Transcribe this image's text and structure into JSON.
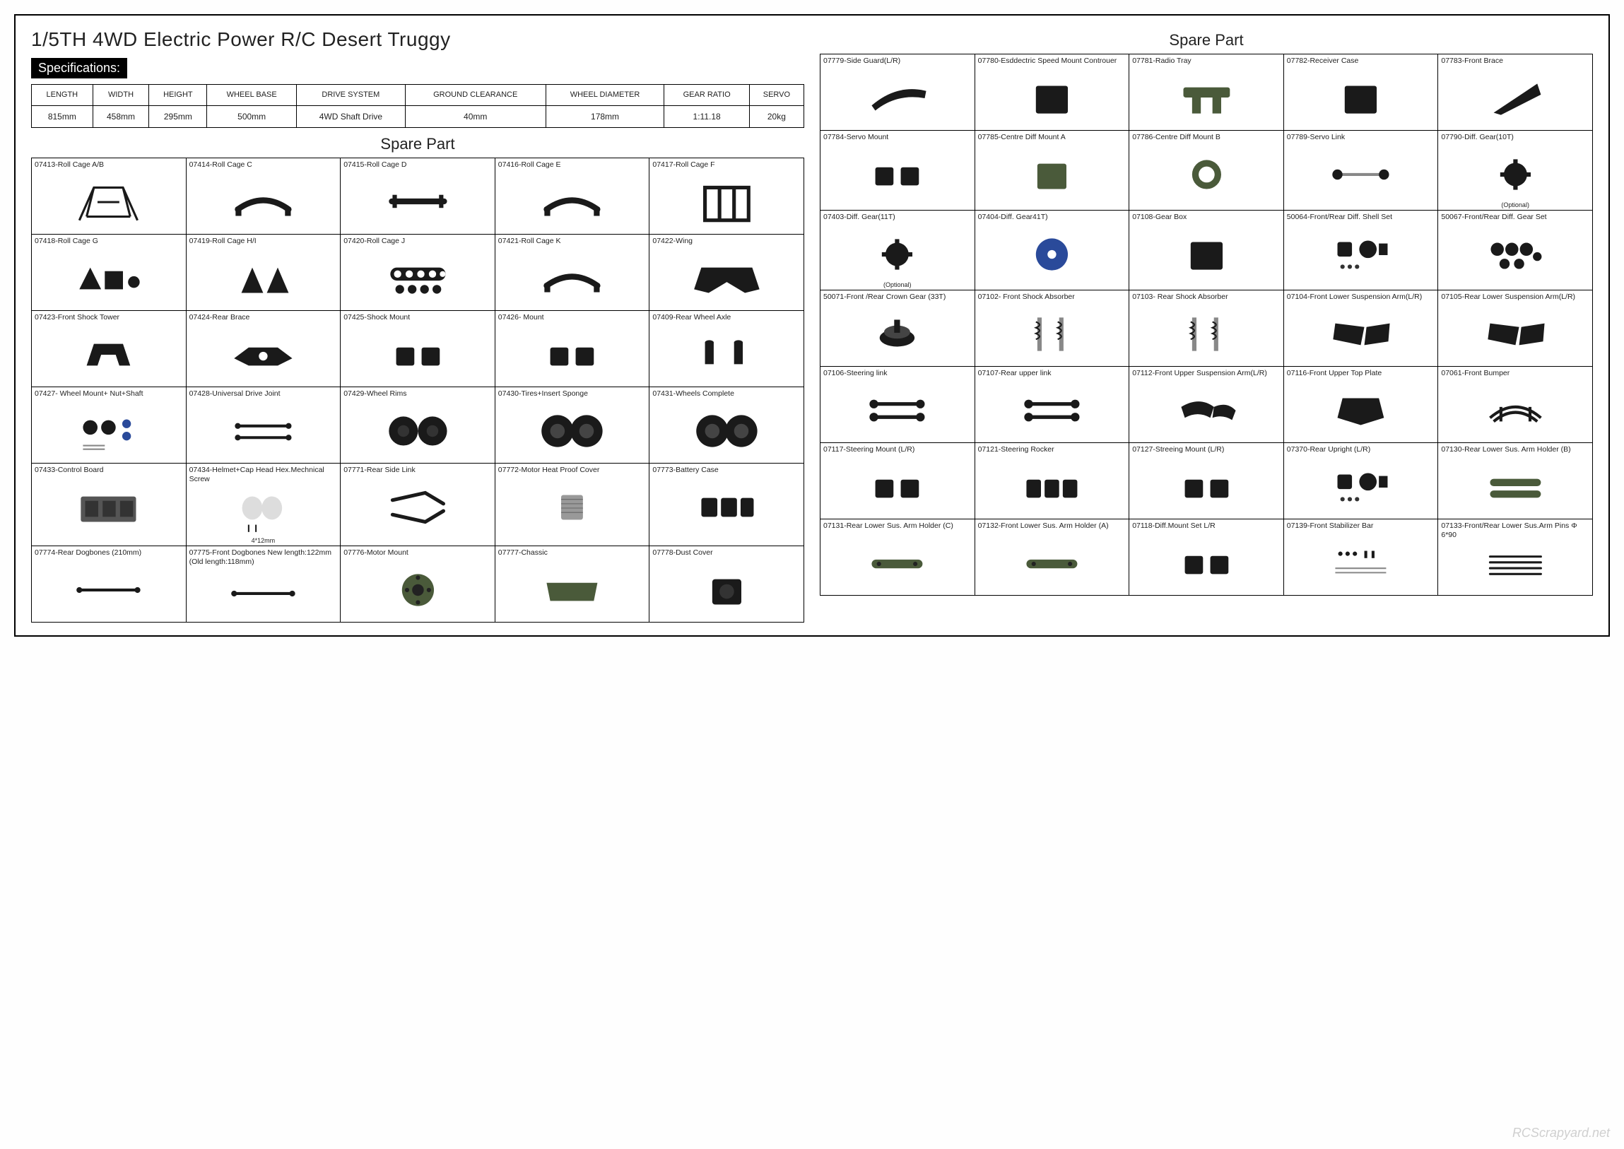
{
  "title": "1/5TH 4WD Electric Power R/C Desert Truggy",
  "spec_label": "Specifications:",
  "spec_headers": [
    "LENGTH",
    "WIDTH",
    "HEIGHT",
    "WHEEL BASE",
    "DRIVE SYSTEM",
    "GROUND CLEARANCE",
    "WHEEL DIAMETER",
    "GEAR RATIO",
    "SERVO"
  ],
  "spec_values": [
    "815mm",
    "458mm",
    "295mm",
    "500mm",
    "4WD Shaft Drive",
    "40mm",
    "178mm",
    "1:11.18",
    "20kg"
  ],
  "section_title": "Spare Part",
  "watermark": "RCScrapyard.net",
  "left_parts": [
    [
      {
        "label": "07413-Roll Cage A/B",
        "shape": "cage"
      },
      {
        "label": "07414-Roll Cage C",
        "shape": "bar"
      },
      {
        "label": "07415-Roll Cage D",
        "shape": "bar2"
      },
      {
        "label": "07416-Roll Cage E",
        "shape": "bar"
      },
      {
        "label": "07417-Roll Cage F",
        "shape": "frame"
      }
    ],
    [
      {
        "label": "07418-Roll Cage G",
        "shape": "mixed"
      },
      {
        "label": "07419-Roll Cage H/I",
        "shape": "tri"
      },
      {
        "label": "07420-Roll Cage J",
        "shape": "holes"
      },
      {
        "label": "07421-Roll Cage K",
        "shape": "bar"
      },
      {
        "label": "07422-Wing",
        "shape": "wing"
      }
    ],
    [
      {
        "label": "07423-Front Shock Tower",
        "shape": "tower"
      },
      {
        "label": "07424-Rear Brace",
        "shape": "brace"
      },
      {
        "label": "07425-Shock Mount",
        "shape": "block2"
      },
      {
        "label": "07426- Mount",
        "shape": "block2"
      },
      {
        "label": "07409-Rear Wheel Axle",
        "shape": "axle"
      }
    ],
    [
      {
        "label": "07427- Wheel Mount+ Nut+Shaft",
        "shape": "kit"
      },
      {
        "label": "07428-Universal Drive Joint",
        "shape": "rod2"
      },
      {
        "label": "07429-Wheel Rims",
        "shape": "rims"
      },
      {
        "label": "07430-Tires+Insert Sponge",
        "shape": "tires"
      },
      {
        "label": "07431-Wheels Complete",
        "shape": "tires"
      }
    ],
    [
      {
        "label": "07433-Control Board",
        "shape": "board"
      },
      {
        "label": "07434-Helmet+Cap Head Hex.Mechnical Screw",
        "shape": "helmet",
        "note": "4*12mm"
      },
      {
        "label": "07771-Rear Side Link",
        "shape": "links"
      },
      {
        "label": "07772-Motor Heat Proof Cover",
        "shape": "cyl"
      },
      {
        "label": "07773-Battery Case",
        "shape": "boxes"
      }
    ],
    [
      {
        "label": "07774-Rear Dogbones (210mm)",
        "shape": "rod"
      },
      {
        "label": "07775-Front Dogbones New length:122mm (Old length:118mm)",
        "shape": "rod"
      },
      {
        "label": "07776-Motor Mount",
        "shape": "disc"
      },
      {
        "label": "07777-Chassic",
        "shape": "plate"
      },
      {
        "label": "07778-Dust Cover",
        "shape": "block"
      }
    ]
  ],
  "right_parts": [
    [
      {
        "label": "07779-Side Guard(L/R)",
        "shape": "curve"
      },
      {
        "label": "07780-Esddectric Speed Mount Controuer",
        "shape": "box"
      },
      {
        "label": "07781-Radio Tray",
        "shape": "plateG"
      },
      {
        "label": "07782-Receiver Case",
        "shape": "box"
      },
      {
        "label": "07783-Front Brace",
        "shape": "wedge"
      }
    ],
    [
      {
        "label": "07784-Servo Mount",
        "shape": "block2"
      },
      {
        "label": "07785-Centre Diff Mount A",
        "shape": "blockG"
      },
      {
        "label": "07786-Centre Diff Mount B",
        "shape": "ringG"
      },
      {
        "label": "07789-Servo Link",
        "shape": "link"
      },
      {
        "label": "07790-Diff. Gear(10T)",
        "shape": "gear",
        "note": "(Optional)"
      }
    ],
    [
      {
        "label": "07403-Diff. Gear(11T)",
        "shape": "gear",
        "note": "(Optional)"
      },
      {
        "label": "07404-Diff. Gear41T)",
        "shape": "gearB"
      },
      {
        "label": "07108-Gear Box",
        "shape": "box"
      },
      {
        "label": "50064-Front/Rear Diff. Shell Set",
        "shape": "kit2"
      },
      {
        "label": "50067-Front/Rear Diff. Gear Set",
        "shape": "gears"
      }
    ],
    [
      {
        "label": "50071-Front /Rear Crown Gear (33T)",
        "shape": "bevel"
      },
      {
        "label": "07102- Front Shock Absorber",
        "shape": "shocks"
      },
      {
        "label": "07103- Rear Shock Absorber",
        "shape": "shocks"
      },
      {
        "label": "07104-Front Lower Suspension Arm(L/R)",
        "shape": "arm"
      },
      {
        "label": "07105-Rear Lower Suspension Arm(L/R)",
        "shape": "arm"
      }
    ],
    [
      {
        "label": "07106-Steering link",
        "shape": "link2"
      },
      {
        "label": "07107-Rear upper link",
        "shape": "link2"
      },
      {
        "label": "07112-Front Upper Suspension Arm(L/R)",
        "shape": "arm2"
      },
      {
        "label": "07116-Front Upper Top Plate",
        "shape": "plate2"
      },
      {
        "label": "07061-Front Bumper",
        "shape": "bumper"
      }
    ],
    [
      {
        "label": "07117-Steering Mount (L/R)",
        "shape": "block2"
      },
      {
        "label": "07121-Steering Rocker",
        "shape": "block3"
      },
      {
        "label": "07127-Streeing Mount (L/R)",
        "shape": "block2"
      },
      {
        "label": "07370-Rear Upright (L/R)",
        "shape": "kit2"
      },
      {
        "label": "07130-Rear Lower Sus. Arm Holder (B)",
        "shape": "barG"
      }
    ],
    [
      {
        "label": "07131-Rear Lower Sus. Arm Holder (C)",
        "shape": "barG1"
      },
      {
        "label": "07132-Front Lower Sus. Arm Holder (A)",
        "shape": "barG1"
      },
      {
        "label": "07118-Diff.Mount Set L/R",
        "shape": "block2"
      },
      {
        "label": "07139-Front Stabilizer Bar",
        "shape": "stab"
      },
      {
        "label": "07133-Front/Rear Lower Sus.Arm Pins Φ 6*90",
        "shape": "pins"
      }
    ]
  ]
}
